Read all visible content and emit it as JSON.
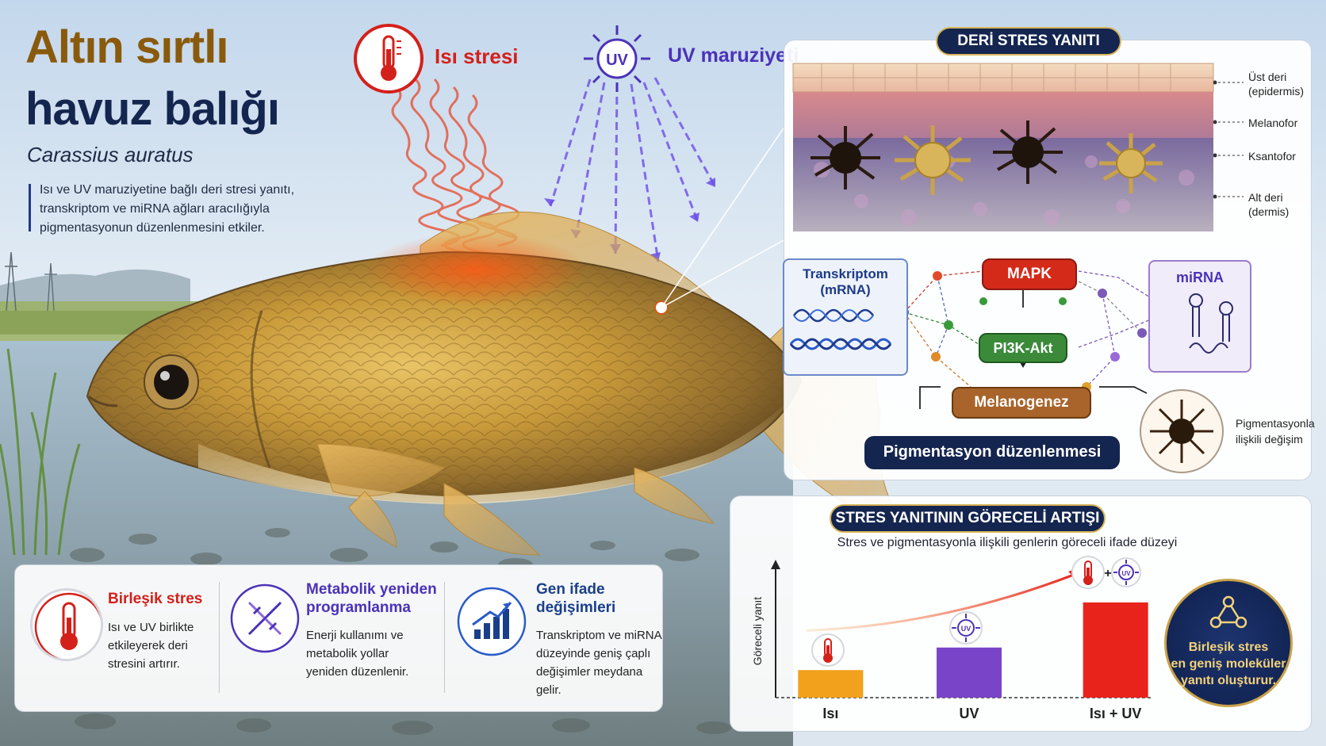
{
  "header": {
    "title_line1": "Altın sırtlı",
    "title_line2": "havuz balığı",
    "scientific_name": "Carassius auratus",
    "description": "Isı ve UV maruziyetine bağlı deri stresi yanıtı, transkriptom ve miRNA ağları aracılığıyla pigmentasyonun düzenlenmesini etkiler."
  },
  "stressors": {
    "heat_label": "Isı stresi",
    "uv_label": "UV maruziyeti",
    "uv_icon_text": "UV"
  },
  "skin_panel": {
    "title": "DERİ STRES YANITI",
    "layers": {
      "epidermis_line1": "Üst deri",
      "epidermis_line2": "(epidermis)",
      "melanophore": "Melanofor",
      "xanthophore": "Ksantofor",
      "dermis_line1": "Alt deri",
      "dermis_line2": "(dermis)"
    }
  },
  "network": {
    "transcriptome_line1": "Transkriptom",
    "transcriptome_line2": "(mRNA)",
    "mirna": "miRNA",
    "mapk": "MAPK",
    "pi3k": "PI3K-Akt",
    "melanogenesis": "Melanogenez",
    "pigment_regulation": "Pigmentasyon düzenlenmesi",
    "pigment_change_line1": "Pigmentasyonla",
    "pigment_change_line2": "ilişkili değişim"
  },
  "chart_panel": {
    "title": "STRES YANITININ GÖRECELİ ARTIŞI",
    "subtitle": "Stres ve pigmentasyonla ilişkili genlerin göreceli ifade düzeyi",
    "uv_badge": "UV",
    "plus": "+"
  },
  "chart_data": {
    "type": "bar",
    "categories": [
      "Isı",
      "UV",
      "Isı + UV"
    ],
    "values": [
      0.22,
      0.4,
      0.76
    ],
    "ylabel": "Göreceli yanıt",
    "ylim": [
      0,
      1
    ],
    "colors": [
      "#f2a11c",
      "#7a44c8",
      "#e8231c"
    ],
    "grid": false
  },
  "conclusion": {
    "line1": "Birleşik stres",
    "line2": "en geniş moleküler",
    "line3": "yanıtı oluşturur."
  },
  "bottom": {
    "items": [
      {
        "title": "Birleşik stres",
        "text": "Isı ve UV birlikte etkileyerek deri stresini artırır.",
        "color": "#d4201a",
        "icon": "thermometer-icon"
      },
      {
        "title": "Metabolik yeniden programlanma",
        "text": "Enerji kullanımı ve metabolik yollar yeniden düzenlenir.",
        "color": "#4b32b8",
        "icon": "dna-icon"
      },
      {
        "title": "Gen ifade değişimleri",
        "text": "Transkriptom ve miRNA düzeyinde geniş çaplı değişimler meydana gelir.",
        "color": "#1a3f8a",
        "icon": "growth-chart-icon"
      }
    ]
  }
}
